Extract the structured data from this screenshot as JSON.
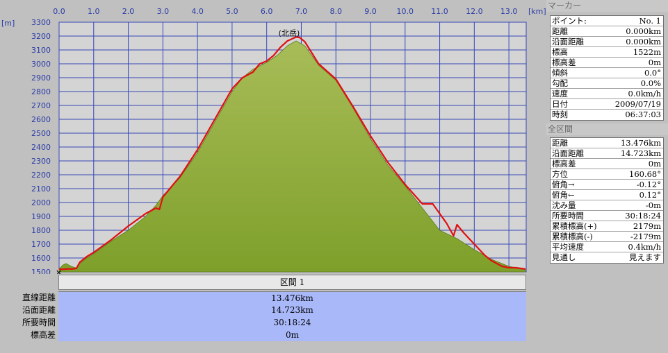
{
  "chart_data": {
    "type": "area",
    "title": "",
    "xlabel": "",
    "ylabel": "",
    "x_unit": "[km]",
    "y_unit": "[m]",
    "xlim": [
      0.0,
      13.5
    ],
    "ylim": [
      1500,
      3300
    ],
    "x_ticks": [
      "0.0",
      "1.0",
      "2.0",
      "3.0",
      "4.0",
      "5.0",
      "6.0",
      "7.0",
      "8.0",
      "9.0",
      "10.0",
      "11.0",
      "12.0",
      "13.0"
    ],
    "y_ticks": [
      "1500",
      "1600",
      "1700",
      "1800",
      "1900",
      "2000",
      "2100",
      "2200",
      "2300",
      "2400",
      "2500",
      "2600",
      "2700",
      "2800",
      "2900",
      "3000",
      "3100",
      "3200",
      "3300"
    ],
    "grid": true,
    "annotations": [
      {
        "text": "(北岳)",
        "x": 6.85,
        "y": 3193
      }
    ],
    "series": [
      {
        "type": "area",
        "color": "#7ea02a",
        "x": [
          0.0,
          0.1,
          0.2,
          0.35,
          0.5,
          0.6,
          0.8,
          1.0,
          1.5,
          2.0,
          2.5,
          2.8,
          3.0,
          3.2,
          3.5,
          4.0,
          4.5,
          5.0,
          5.3,
          5.6,
          6.0,
          6.3,
          6.6,
          6.85,
          7.1,
          7.5,
          8.0,
          8.5,
          9.0,
          9.5,
          10.0,
          10.5,
          11.0,
          11.5,
          12.0,
          12.5,
          13.0,
          13.2,
          13.476
        ],
        "y": [
          1520,
          1548,
          1560,
          1540,
          1528,
          1560,
          1600,
          1630,
          1720,
          1800,
          1900,
          1980,
          2050,
          2100,
          2180,
          2360,
          2580,
          2800,
          2900,
          2960,
          3010,
          3060,
          3130,
          3165,
          3130,
          2990,
          2880,
          2680,
          2460,
          2270,
          2120,
          1960,
          1800,
          1740,
          1660,
          1590,
          1540,
          1530,
          1520
        ]
      },
      {
        "type": "line",
        "color": "#e01010",
        "x": [
          0.0,
          0.1,
          0.3,
          0.35,
          0.5,
          0.6,
          0.8,
          1.0,
          1.5,
          2.0,
          2.5,
          2.8,
          2.9,
          3.0,
          3.2,
          3.5,
          4.0,
          4.5,
          5.0,
          5.3,
          5.6,
          5.8,
          6.0,
          6.2,
          6.4,
          6.6,
          6.85,
          6.95,
          7.1,
          7.5,
          8.0,
          8.5,
          9.0,
          9.5,
          10.0,
          10.5,
          10.8,
          11.0,
          11.2,
          11.4,
          11.5,
          11.7,
          12.0,
          12.3,
          12.5,
          12.8,
          13.0,
          13.2,
          13.476
        ],
        "y": [
          1520,
          1518,
          1522,
          1520,
          1525,
          1570,
          1610,
          1640,
          1730,
          1830,
          1920,
          1960,
          1950,
          2040,
          2100,
          2190,
          2380,
          2600,
          2820,
          2900,
          2940,
          3000,
          3020,
          3060,
          3120,
          3165,
          3193,
          3190,
          3160,
          3000,
          2890,
          2690,
          2480,
          2290,
          2130,
          1990,
          1990,
          1920,
          1850,
          1760,
          1840,
          1780,
          1700,
          1620,
          1580,
          1540,
          1530,
          1530,
          1520
        ]
      }
    ]
  },
  "section": {
    "header": "区間 1",
    "rows": [
      {
        "label": "直線距離",
        "value": "13.476km"
      },
      {
        "label": "沿面距離",
        "value": "14.723km"
      },
      {
        "label": "所要時間",
        "value": "30:18:24"
      },
      {
        "label": "標高差",
        "value": "0m"
      }
    ]
  },
  "marker_panel": {
    "title": "マーカー",
    "rows": [
      {
        "key": "ポイント:",
        "value": "No. 1"
      },
      {
        "key": "距離",
        "value": "0.000km"
      },
      {
        "key": "沿面距離",
        "value": "0.000km"
      },
      {
        "key": "標高",
        "value": "1522m"
      },
      {
        "key": "標高差",
        "value": "0m"
      },
      {
        "key": "傾斜",
        "value": "0.0°"
      },
      {
        "key": "勾配",
        "value": "0.0%"
      },
      {
        "key": "速度",
        "value": "0.0km/h"
      },
      {
        "key": "日付",
        "value": "2009/07/19"
      },
      {
        "key": "時刻",
        "value": "06:37:03"
      }
    ]
  },
  "total_panel": {
    "title": "全区間",
    "rows": [
      {
        "key": "距離",
        "value": "13.476km"
      },
      {
        "key": "沿面距離",
        "value": "14.723km"
      },
      {
        "key": "標高差",
        "value": "0m"
      },
      {
        "key": "方位",
        "value": "160.68°"
      },
      {
        "key": "俯角→",
        "value": "-0.12°"
      },
      {
        "key": "俯角←",
        "value": "0.12°"
      },
      {
        "key": "沈み量",
        "value": "-0m"
      },
      {
        "key": "所要時間",
        "value": "30:18:24"
      },
      {
        "key": "累積標高(+)",
        "value": "2179m"
      },
      {
        "key": "累積標高(-)",
        "value": "-2179m"
      },
      {
        "key": "平均速度",
        "value": "0.4km/h"
      },
      {
        "key": "見通し",
        "value": "見えます"
      }
    ]
  }
}
